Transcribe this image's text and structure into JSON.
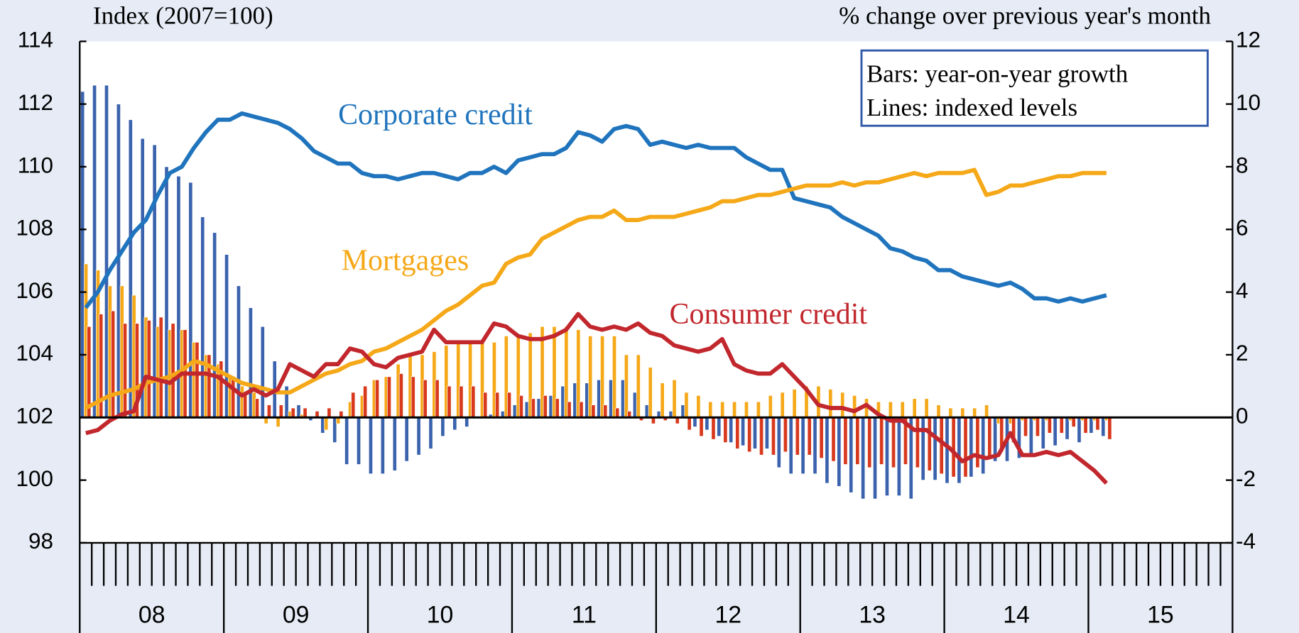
{
  "chart_data": {
    "type": "bar",
    "y_label": "Index (2007=100)",
    "y2_label": "% change over previous year's month",
    "note": [
      "Bars: year-on-year growth",
      "Lines: indexed levels"
    ],
    "categories": [
      "08",
      null,
      null,
      null,
      null,
      null,
      null,
      null,
      null,
      null,
      null,
      null,
      "09",
      null,
      null,
      null,
      null,
      null,
      null,
      null,
      null,
      null,
      null,
      null,
      "10",
      null,
      null,
      null,
      null,
      null,
      null,
      null,
      null,
      null,
      null,
      null,
      "11",
      null,
      null,
      null,
      null,
      null,
      null,
      null,
      null,
      null,
      null,
      null,
      "12",
      null,
      null,
      null,
      null,
      null,
      null,
      null,
      null,
      null,
      null,
      null,
      "13",
      null,
      null,
      null,
      null,
      null,
      null,
      null,
      null,
      null,
      null,
      null,
      "14",
      null,
      null,
      null,
      null,
      null,
      null,
      null,
      null,
      null,
      null,
      null,
      "15",
      null,
      null,
      null,
      null,
      null,
      null,
      null,
      null,
      null,
      null,
      null
    ],
    "ylim": [
      98,
      114
    ],
    "yticks": [
      98,
      100,
      102,
      104,
      106,
      108,
      110,
      112,
      114
    ],
    "y2lim": [
      -4,
      12
    ],
    "y2ticks": [
      -4,
      -2,
      0,
      2,
      4,
      6,
      8,
      10,
      12
    ],
    "series": [
      {
        "type": "bar",
        "axis": "y2",
        "color": "#3a62ad",
        "values": [
          10.4,
          10.6,
          10.6,
          10.0,
          9.5,
          8.9,
          8.7,
          8.0,
          7.7,
          7.5,
          6.4,
          5.9,
          5.2,
          4.2,
          3.5,
          2.9,
          1.8,
          1.0,
          0.4,
          -0.1,
          -0.5,
          -0.8,
          -1.5,
          -1.5,
          -1.8,
          -1.8,
          -1.7,
          -1.4,
          -1.2,
          -1.0,
          -0.6,
          -0.4,
          -0.3,
          0.0,
          0.1,
          0.2,
          0.4,
          0.5,
          0.6,
          0.7,
          1.0,
          1.1,
          1.1,
          1.2,
          1.2,
          1.2,
          0.8,
          0.4,
          0.2,
          0.2,
          0.4,
          -0.3,
          -0.4,
          -0.6,
          -0.8,
          -0.9,
          -1.0,
          -1.0,
          -1.6,
          -1.8,
          -1.8,
          -1.8,
          -2.1,
          -2.2,
          -2.4,
          -2.6,
          -2.6,
          -2.5,
          -2.5,
          -2.6,
          -2.0,
          -2.0,
          -2.1,
          -2.1,
          -1.9,
          -1.8,
          -1.4,
          -1.4,
          -1.3,
          -1.2,
          -1.0,
          -0.9,
          -0.7,
          -0.8,
          -0.5,
          -0.6,
          null,
          null,
          null,
          null,
          null,
          null,
          null,
          null,
          null,
          null
        ]
      },
      {
        "type": "bar",
        "axis": "y2",
        "color": "#f5a818",
        "values": [
          4.9,
          4.7,
          4.2,
          4.2,
          3.9,
          3.2,
          2.9,
          2.8,
          2.8,
          2.4,
          2.0,
          1.7,
          1.3,
          1.0,
          0.8,
          -0.2,
          -0.3,
          0.2,
          0.1,
          0.0,
          -0.4,
          -0.2,
          0.5,
          0.7,
          1.2,
          1.3,
          1.7,
          2.0,
          2.0,
          2.1,
          2.3,
          2.4,
          2.4,
          2.4,
          2.4,
          2.6,
          2.6,
          2.7,
          2.9,
          2.9,
          2.9,
          2.8,
          2.6,
          2.6,
          2.6,
          2.0,
          2.0,
          1.6,
          1.1,
          1.2,
          0.8,
          0.7,
          0.5,
          0.5,
          0.5,
          0.5,
          0.5,
          0.7,
          0.8,
          0.9,
          1.0,
          1.0,
          0.9,
          0.8,
          0.7,
          0.6,
          0.5,
          0.5,
          0.5,
          0.6,
          0.6,
          0.4,
          0.3,
          0.3,
          0.3,
          0.4,
          -0.2,
          -0.2,
          -0.1,
          -0.1,
          -0.1,
          0.0,
          -0.1,
          -0.1,
          -0.1,
          -0.1,
          null,
          null,
          null,
          null,
          null,
          null,
          null,
          null,
          null,
          null
        ]
      },
      {
        "type": "bar",
        "axis": "y2",
        "color": "#d8381c",
        "values": [
          2.9,
          3.3,
          3.4,
          3.0,
          3.0,
          3.1,
          3.2,
          3.0,
          2.8,
          2.4,
          2.0,
          1.8,
          1.3,
          0.8,
          0.6,
          0.4,
          0.4,
          0.3,
          0.3,
          0.2,
          0.3,
          0.2,
          0.8,
          1.0,
          1.2,
          1.3,
          1.4,
          1.3,
          1.2,
          1.2,
          1.0,
          1.0,
          1.0,
          0.8,
          0.8,
          0.8,
          0.7,
          0.6,
          0.7,
          0.6,
          0.5,
          0.5,
          0.4,
          0.4,
          0.3,
          0.2,
          -0.1,
          -0.2,
          -0.1,
          -0.2,
          -0.4,
          -0.6,
          -0.7,
          -0.8,
          -1.0,
          -1.1,
          -1.2,
          -1.2,
          -1.1,
          -1.2,
          -1.2,
          -1.3,
          -1.4,
          -1.5,
          -1.5,
          -1.6,
          -1.5,
          -1.6,
          -1.5,
          -1.6,
          -1.7,
          -1.8,
          -1.9,
          -1.9,
          -1.6,
          -1.3,
          -1.1,
          -0.8,
          -0.6,
          -0.6,
          -0.5,
          -0.5,
          -0.3,
          -0.5,
          -0.4,
          -0.7,
          null,
          null,
          null,
          null,
          null,
          null,
          null,
          null,
          null,
          null
        ]
      },
      {
        "type": "line",
        "name": "Corporate credit",
        "color": "#1f74bd",
        "values": [
          105.5,
          106.0,
          106.7,
          107.3,
          107.9,
          108.3,
          109.1,
          109.8,
          110.0,
          110.6,
          111.1,
          111.5,
          111.5,
          111.7,
          111.6,
          111.5,
          111.4,
          111.2,
          110.9,
          110.5,
          110.3,
          110.1,
          110.1,
          109.8,
          109.7,
          109.7,
          109.6,
          109.7,
          109.8,
          109.8,
          109.7,
          109.6,
          109.8,
          109.8,
          110.0,
          109.8,
          110.2,
          110.3,
          110.4,
          110.4,
          110.6,
          111.1,
          111.0,
          110.8,
          111.2,
          111.3,
          111.2,
          110.7,
          110.8,
          110.7,
          110.6,
          110.7,
          110.6,
          110.6,
          110.6,
          110.3,
          110.1,
          109.9,
          109.9,
          109.0,
          108.9,
          108.8,
          108.7,
          108.4,
          108.2,
          108.0,
          107.8,
          107.4,
          107.3,
          107.1,
          107.0,
          106.7,
          106.7,
          106.5,
          106.4,
          106.3,
          106.2,
          106.3,
          106.1,
          105.8,
          105.8,
          105.7,
          105.8,
          105.7,
          105.8,
          105.9,
          null,
          null,
          null,
          null,
          null,
          null,
          null,
          null,
          null,
          null
        ]
      },
      {
        "type": "line",
        "name": "Mortgages",
        "color": "#f5a818",
        "values": [
          102.3,
          102.5,
          102.7,
          102.8,
          102.9,
          103.1,
          103.2,
          103.3,
          103.5,
          103.8,
          103.7,
          103.5,
          103.3,
          103.1,
          103.0,
          102.9,
          102.8,
          102.8,
          103.0,
          103.2,
          103.4,
          103.5,
          103.7,
          103.8,
          104.1,
          104.2,
          104.4,
          104.6,
          104.8,
          105.1,
          105.4,
          105.6,
          105.9,
          106.2,
          106.3,
          106.9,
          107.1,
          107.2,
          107.7,
          107.9,
          108.1,
          108.3,
          108.4,
          108.4,
          108.6,
          108.3,
          108.3,
          108.4,
          108.4,
          108.4,
          108.5,
          108.6,
          108.7,
          108.9,
          108.9,
          109.0,
          109.1,
          109.1,
          109.2,
          109.3,
          109.4,
          109.4,
          109.4,
          109.5,
          109.4,
          109.5,
          109.5,
          109.6,
          109.7,
          109.8,
          109.7,
          109.8,
          109.8,
          109.8,
          109.9,
          109.1,
          109.2,
          109.4,
          109.4,
          109.5,
          109.6,
          109.7,
          109.7,
          109.8,
          109.8,
          109.8,
          null,
          null,
          null,
          null,
          null,
          null,
          null,
          null,
          null,
          null
        ]
      },
      {
        "type": "line",
        "name": "Consumer credit",
        "color": "#c1272d",
        "values": [
          101.5,
          101.6,
          101.9,
          102.1,
          102.2,
          103.3,
          103.2,
          103.1,
          103.4,
          103.4,
          103.4,
          103.3,
          103.0,
          102.7,
          102.9,
          102.7,
          102.9,
          103.7,
          103.5,
          103.3,
          103.7,
          103.7,
          104.2,
          104.1,
          103.7,
          103.6,
          103.9,
          104.0,
          104.1,
          104.8,
          104.4,
          104.4,
          104.4,
          104.4,
          105.0,
          104.9,
          104.6,
          104.5,
          104.5,
          104.6,
          104.8,
          105.3,
          104.9,
          104.8,
          104.9,
          104.8,
          105.0,
          104.7,
          104.6,
          104.3,
          104.2,
          104.1,
          104.2,
          104.5,
          103.7,
          103.5,
          103.4,
          103.4,
          103.7,
          103.3,
          102.9,
          102.4,
          102.3,
          102.3,
          102.2,
          102.4,
          102.1,
          101.9,
          101.9,
          101.6,
          101.6,
          101.3,
          101.0,
          100.6,
          100.8,
          100.7,
          100.8,
          101.5,
          100.8,
          100.8,
          100.9,
          100.8,
          100.9,
          100.6,
          100.3,
          99.9,
          null,
          null,
          null,
          null,
          null,
          null,
          null,
          null,
          null,
          null
        ]
      }
    ]
  }
}
